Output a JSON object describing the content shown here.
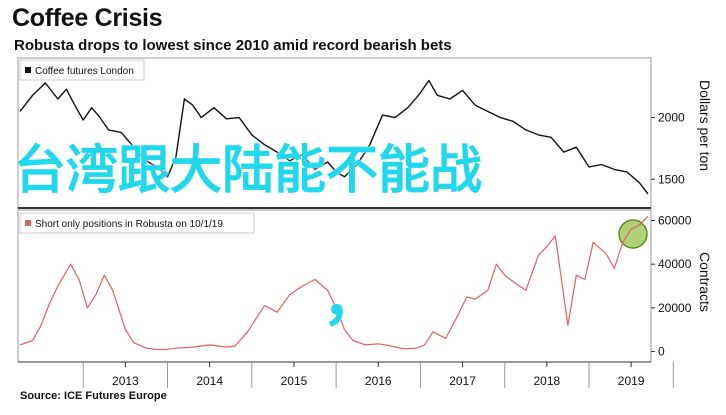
{
  "header": {
    "title": "Coffee Crisis",
    "subtitle": "Robusta drops to lowest since 2010 amid record bearish bets"
  },
  "source": "Source: ICE Futures Europe",
  "overlay": {
    "text": "台湾跟大陆能不能战",
    "comma": "，"
  },
  "colors": {
    "price_line": "#111111",
    "positions_line": "#e06060",
    "overlay": "#20d7ec",
    "highlight": "#8fbc3a"
  },
  "chart_data": [
    {
      "type": "line",
      "legend": "Coffee futures London",
      "legend_position": "top-left",
      "y_label": "Dollars per ton",
      "y_ticks": [
        1500,
        2000
      ],
      "ylim": [
        1300,
        2450
      ],
      "x_ticks": [
        "2013",
        "2014",
        "2015",
        "2016",
        "2017",
        "2018",
        "2019"
      ],
      "xlim": [
        2012.25,
        2019.7
      ],
      "grid": false,
      "series": [
        {
          "name": "Coffee futures London",
          "x": [
            2012.25,
            2012.4,
            2012.55,
            2012.7,
            2012.8,
            2012.9,
            2013.0,
            2013.1,
            2013.2,
            2013.3,
            2013.45,
            2013.6,
            2013.75,
            2013.9,
            2014.0,
            2014.1,
            2014.2,
            2014.3,
            2014.4,
            2014.55,
            2014.7,
            2014.85,
            2015.0,
            2015.15,
            2015.3,
            2015.45,
            2015.6,
            2015.75,
            2015.9,
            2016.0,
            2016.1,
            2016.25,
            2016.4,
            2016.55,
            2016.7,
            2016.85,
            2017.0,
            2017.1,
            2017.2,
            2017.35,
            2017.5,
            2017.65,
            2017.8,
            2017.95,
            2018.1,
            2018.25,
            2018.4,
            2018.55,
            2018.7,
            2018.85,
            2019.0,
            2019.15,
            2019.3,
            2019.45,
            2019.6,
            2019.7
          ],
          "y": [
            2050,
            2180,
            2280,
            2150,
            2230,
            2100,
            1980,
            2080,
            2000,
            1900,
            1880,
            1760,
            1650,
            1590,
            1520,
            1680,
            2150,
            2100,
            2000,
            2080,
            1990,
            2000,
            1860,
            1780,
            1720,
            1650,
            1700,
            1580,
            1640,
            1560,
            1520,
            1620,
            1780,
            2020,
            2000,
            2080,
            2200,
            2300,
            2180,
            2150,
            2220,
            2100,
            2050,
            2000,
            1970,
            1900,
            1860,
            1840,
            1720,
            1760,
            1600,
            1620,
            1580,
            1560,
            1470,
            1380
          ]
        }
      ]
    },
    {
      "type": "line",
      "legend": "Short only positions in Robusta on 10/1/19",
      "legend_position": "top-left",
      "y_label": "Contracts",
      "y_ticks": [
        0,
        20000,
        40000,
        60000
      ],
      "ylim": [
        -3000,
        63000
      ],
      "x_ticks": [
        "2013",
        "2014",
        "2015",
        "2016",
        "2017",
        "2018",
        "2019"
      ],
      "xlim": [
        2012.25,
        2019.7
      ],
      "grid": false,
      "series": [
        {
          "name": "Short only positions in Robusta on 10/1/19",
          "x": [
            2012.25,
            2012.4,
            2012.5,
            2012.6,
            2012.7,
            2012.85,
            2012.95,
            2013.05,
            2013.15,
            2013.25,
            2013.35,
            2013.5,
            2013.6,
            2013.75,
            2013.9,
            2014.0,
            2014.1,
            2014.3,
            2014.5,
            2014.7,
            2014.8,
            2014.95,
            2015.05,
            2015.15,
            2015.3,
            2015.45,
            2015.6,
            2015.75,
            2015.9,
            2016.0,
            2016.1,
            2016.2,
            2016.35,
            2016.5,
            2016.65,
            2016.8,
            2016.95,
            2017.05,
            2017.15,
            2017.3,
            2017.45,
            2017.55,
            2017.65,
            2017.8,
            2017.9,
            2018.0,
            2018.1,
            2018.25,
            2018.4,
            2018.5,
            2018.6,
            2018.75,
            2018.85,
            2018.95,
            2019.05,
            2019.2,
            2019.3,
            2019.4,
            2019.5,
            2019.6,
            2019.7
          ],
          "y": [
            3000,
            5000,
            12000,
            22000,
            30000,
            40000,
            33000,
            20000,
            26000,
            35000,
            28000,
            10000,
            4000,
            1500,
            800,
            1000,
            1500,
            2000,
            3000,
            2000,
            2500,
            9000,
            15000,
            21000,
            18000,
            26000,
            30000,
            33000,
            28000,
            20000,
            10000,
            5000,
            3000,
            3500,
            2500,
            1200,
            1500,
            3000,
            9000,
            6000,
            17000,
            25000,
            24000,
            28000,
            40000,
            35000,
            32000,
            28000,
            44000,
            48000,
            53000,
            12000,
            35000,
            33000,
            50000,
            45000,
            38000,
            50000,
            56000,
            58000,
            62000
          ]
        }
      ]
    }
  ]
}
